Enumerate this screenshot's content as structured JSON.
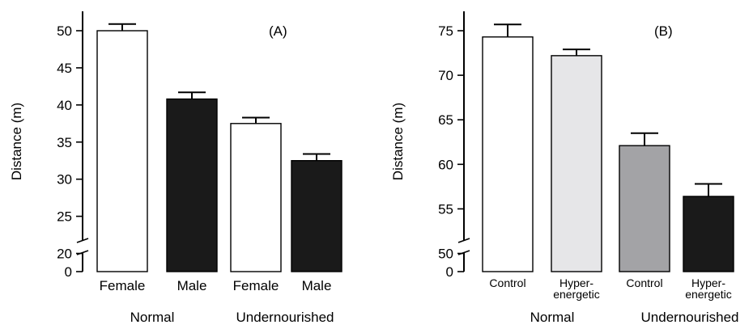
{
  "chart_data": [
    {
      "type": "bar",
      "panel_label": "(A)",
      "ylabel": "Distance (m)",
      "ylim": [
        0,
        52
      ],
      "axis_break": true,
      "yticks": [
        "0",
        "20",
        "25",
        "30",
        "35",
        "40",
        "45",
        "50"
      ],
      "categories": [
        "Female",
        "Male",
        "Female",
        "Male"
      ],
      "groups": [
        {
          "label": "Normal",
          "span": [
            0,
            1
          ]
        },
        {
          "label": "Undernourished",
          "span": [
            2,
            3
          ]
        }
      ],
      "values": [
        50.0,
        40.8,
        37.5,
        32.5
      ],
      "errors": [
        0.9,
        0.9,
        0.8,
        0.9
      ],
      "bar_colors": [
        "#ffffff",
        "#1a1a1a",
        "#ffffff",
        "#1a1a1a"
      ]
    },
    {
      "type": "bar",
      "panel_label": "(B)",
      "ylabel": "Distance (m)",
      "ylim": [
        0,
        76
      ],
      "axis_break": true,
      "yticks": [
        "0",
        "50",
        "55",
        "60",
        "65",
        "70",
        "75"
      ],
      "categories": [
        "Control",
        "Hyper-\nenergetic",
        "Control",
        "Hyper-\nenergetic"
      ],
      "groups": [
        {
          "label": "Normal",
          "span": [
            0,
            1
          ]
        },
        {
          "label": "Undernourished",
          "span": [
            2,
            3
          ]
        }
      ],
      "values": [
        74.3,
        72.2,
        62.1,
        56.4
      ],
      "errors": [
        1.4,
        0.7,
        1.4,
        1.4
      ],
      "bar_colors": [
        "#ffffff",
        "#e6e6e8",
        "#a3a3a6",
        "#1a1a1a"
      ]
    }
  ]
}
